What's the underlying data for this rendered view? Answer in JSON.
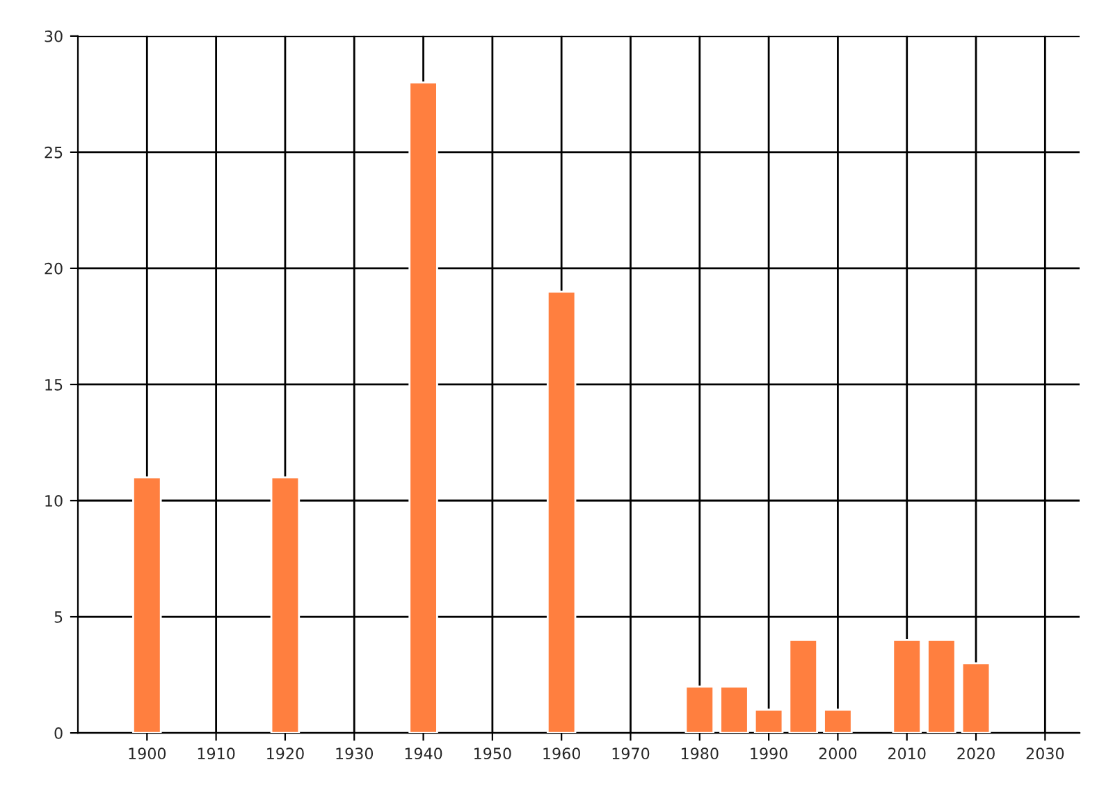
{
  "chart_data": {
    "type": "bar",
    "x": [
      1900,
      1920,
      1940,
      1960,
      1980,
      1985,
      1990,
      1995,
      2000,
      2010,
      2015,
      2020
    ],
    "values": [
      11,
      11,
      28,
      19,
      2,
      2,
      1,
      4,
      1,
      4,
      4,
      3
    ],
    "color": "#ff7f3f",
    "xlim": [
      1890,
      2035
    ],
    "xticks": [
      1900,
      1910,
      1920,
      1930,
      1940,
      1950,
      1960,
      1970,
      1980,
      1990,
      2000,
      2010,
      2020,
      2030
    ],
    "ylim": [
      0,
      30
    ],
    "yticks": [
      0,
      5,
      10,
      15,
      20,
      25,
      30
    ],
    "grid": true
  }
}
